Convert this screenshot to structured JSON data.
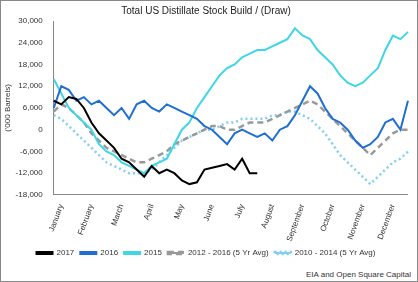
{
  "chart_data": {
    "type": "line",
    "title": "Total US Distillate Stock Build / (Draw)",
    "y_label": "('000 Barrels)",
    "annotations": [
      "EIA and Open Square Capital"
    ],
    "categories": [
      null,
      "January",
      null,
      null,
      null,
      "February",
      null,
      null,
      null,
      "March",
      null,
      null,
      null,
      "April",
      null,
      null,
      null,
      "May",
      null,
      null,
      null,
      "June",
      null,
      null,
      null,
      "July",
      null,
      null,
      null,
      "August",
      null,
      null,
      null,
      "September",
      null,
      null,
      null,
      "October",
      null,
      null,
      null,
      "November",
      null,
      null,
      null,
      "December",
      null,
      null
    ],
    "series": [
      {
        "name": "2017",
        "color": "#000000",
        "line_style": "solid",
        "values": [
          8000,
          7000,
          9000,
          8500,
          6000,
          2000,
          -1000,
          -3000,
          -5000,
          -8000,
          -9000,
          -11000,
          -13000,
          -10000,
          -12000,
          -11000,
          -12000,
          -14000,
          -15000,
          -14500,
          -11000,
          -10500,
          -10000,
          -9500,
          -11000,
          -8000,
          -12000,
          -12000,
          null,
          null,
          null,
          null,
          null,
          null,
          null,
          null,
          null,
          null,
          null,
          null,
          null,
          null,
          null,
          null,
          null,
          null,
          null,
          null
        ]
      },
      {
        "name": "2016",
        "color": "#1f6fd1",
        "line_style": "solid",
        "values": [
          6000,
          12000,
          11000,
          8000,
          9000,
          7000,
          8000,
          6000,
          4000,
          6000,
          3000,
          7000,
          8000,
          6000,
          5000,
          7000,
          6000,
          5000,
          4000,
          3000,
          1000,
          0,
          -2000,
          -4000,
          -1000,
          0,
          -1000,
          -2000,
          -1000,
          -3000,
          0,
          1000,
          4000,
          8000,
          12000,
          10000,
          6000,
          3000,
          2000,
          0,
          -3000,
          -5000,
          -4000,
          -2000,
          2000,
          3000,
          0,
          8000
        ]
      },
      {
        "name": "2015",
        "color": "#3fd6e6",
        "line_style": "solid",
        "values": [
          14000,
          10000,
          6000,
          4000,
          2000,
          0,
          -4000,
          -6000,
          -7000,
          -9000,
          -10000,
          -11000,
          -12000,
          -10000,
          -9000,
          -8000,
          -4000,
          0,
          2000,
          6000,
          9000,
          12000,
          15000,
          17000,
          18000,
          20000,
          21000,
          22000,
          22000,
          23000,
          24000,
          25000,
          28000,
          26000,
          25000,
          22000,
          20000,
          18000,
          15000,
          13000,
          12000,
          13000,
          15000,
          17000,
          22000,
          26000,
          25000,
          27000
        ]
      },
      {
        "name": "2012 - 2016 (5 Yr Avg)",
        "color": "#999999",
        "line_style": "dashed",
        "values": [
          5000,
          7000,
          6000,
          4000,
          2000,
          -1000,
          -3000,
          -5000,
          -6000,
          -7000,
          -8000,
          -9000,
          -9000,
          -8000,
          -7000,
          -6000,
          -4000,
          -3000,
          -2000,
          -1000,
          0,
          1000,
          1000,
          0,
          0,
          1000,
          2000,
          2000,
          2000,
          3000,
          4000,
          5000,
          6000,
          7000,
          8000,
          7000,
          5000,
          3000,
          1000,
          -1000,
          -3000,
          -5000,
          -7000,
          -5000,
          -3000,
          -1000,
          0,
          0
        ]
      },
      {
        "name": "2010 - 2014 (5 Yr Avg)",
        "color": "#7fd0f0",
        "line_style": "dotted",
        "values": [
          4000,
          3000,
          1000,
          -1000,
          -3000,
          -5000,
          -7000,
          -9000,
          -10000,
          -11000,
          -12000,
          -12000,
          -12000,
          -11000,
          -9000,
          -7000,
          -5000,
          -3000,
          -2000,
          -1000,
          0,
          0,
          1000,
          2000,
          2000,
          3000,
          3000,
          3000,
          3000,
          4000,
          4000,
          5000,
          5000,
          4000,
          3000,
          1000,
          -1000,
          -4000,
          -7000,
          -9000,
          -11000,
          -13000,
          -15000,
          -13000,
          -11000,
          -9000,
          -8000,
          -6000
        ]
      }
    ],
    "ylim": [
      -18000,
      30000
    ],
    "yticks": [
      {
        "value": -18000,
        "label": "-18,000"
      },
      {
        "value": -12000,
        "label": "-12,000"
      },
      {
        "value": -6000,
        "label": "-6,000"
      },
      0,
      {
        "value": 6000,
        "label": "6,000"
      },
      {
        "value": 12000,
        "label": "12,000"
      },
      {
        "value": 18000,
        "label": "18,000"
      },
      {
        "value": 24000,
        "label": "24,000"
      },
      {
        "value": 30000,
        "label": "30,000"
      }
    ],
    "grid": false,
    "legend": "bottom"
  }
}
